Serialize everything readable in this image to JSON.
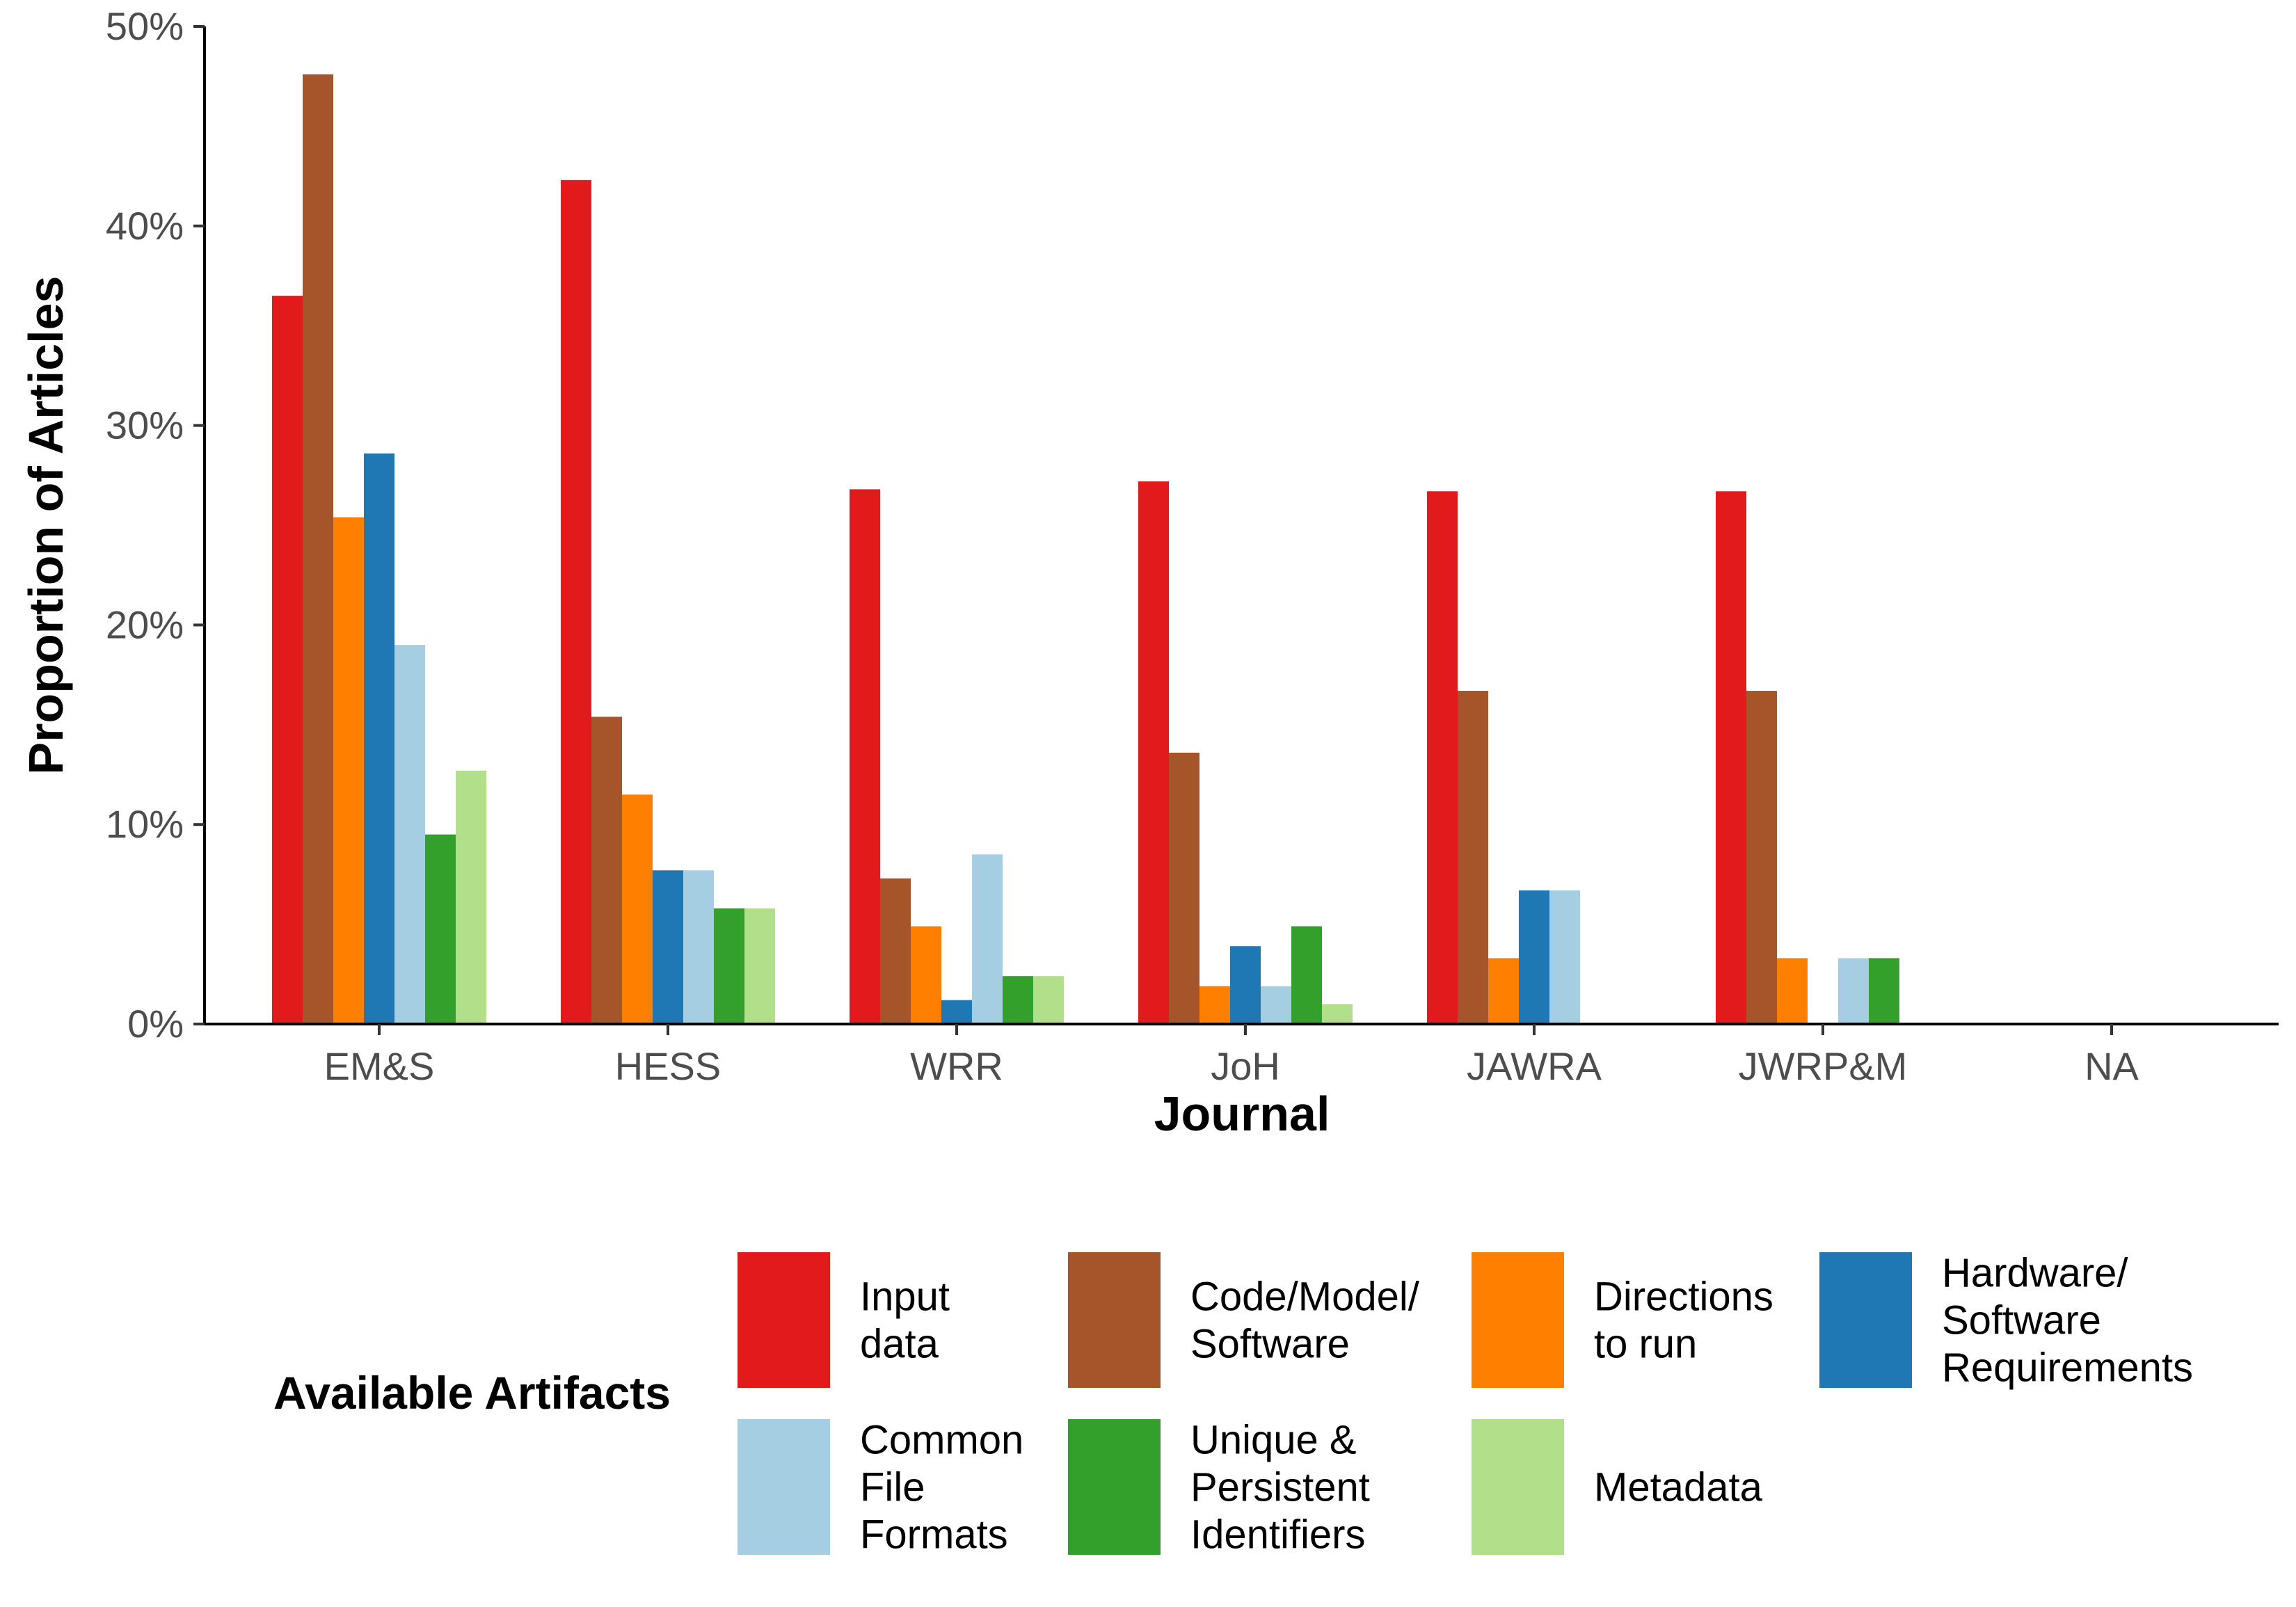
{
  "chart_data": {
    "type": "bar",
    "xlabel": "Journal",
    "ylabel": "Proportion of Articles",
    "ylim": [
      0,
      0.5
    ],
    "yticks": [
      0,
      0.1,
      0.2,
      0.3,
      0.4,
      0.5
    ],
    "ytick_labels": [
      "0%",
      "10%",
      "20%",
      "30%",
      "40%",
      "50%"
    ],
    "grid": false,
    "legend_position": "bottom",
    "categories": [
      "EM&S",
      "HESS",
      "WRR",
      "JoH",
      "JAWRA",
      "JWRP&M",
      "NA"
    ],
    "legend": {
      "title": "Available Artifacts"
    },
    "series": [
      {
        "name": "Input data",
        "label_lines": [
          "Input",
          "data"
        ],
        "color": "#e31a1c",
        "values": [
          0.365,
          0.423,
          0.268,
          0.272,
          0.267,
          0.267,
          0
        ]
      },
      {
        "name": "Code/Model/Software",
        "label_lines": [
          "Code/Model/",
          "Software"
        ],
        "color": "#a6542a",
        "values": [
          0.476,
          0.154,
          0.073,
          0.136,
          0.167,
          0.167,
          0
        ]
      },
      {
        "name": "Directions to run",
        "label_lines": [
          "Directions",
          "to run"
        ],
        "color": "#ff7f00",
        "values": [
          0.254,
          0.115,
          0.049,
          0.019,
          0.033,
          0.033,
          0
        ]
      },
      {
        "name": "Hardware/Software Requirements",
        "label_lines": [
          "Hardware/",
          "Software",
          "Requirements"
        ],
        "color": "#1f78b4",
        "values": [
          0.286,
          0.077,
          0.012,
          0.039,
          0.067,
          0,
          0
        ]
      },
      {
        "name": "Common File Formats",
        "label_lines": [
          "Common",
          "File",
          "Formats"
        ],
        "color": "#a6cee3",
        "values": [
          0.19,
          0.077,
          0.085,
          0.019,
          0.067,
          0.033,
          0
        ]
      },
      {
        "name": "Unique & Persistent Identifiers",
        "label_lines": [
          "Unique &",
          "Persistent",
          "Identifiers"
        ],
        "color": "#33a02c",
        "values": [
          0.095,
          0.058,
          0.024,
          0.049,
          0,
          0.033,
          0
        ]
      },
      {
        "name": "Metadata",
        "label_lines": [
          "Metadata"
        ],
        "color": "#b2df8a",
        "values": [
          0.127,
          0.058,
          0.024,
          0.01,
          0,
          0,
          0
        ]
      }
    ]
  }
}
